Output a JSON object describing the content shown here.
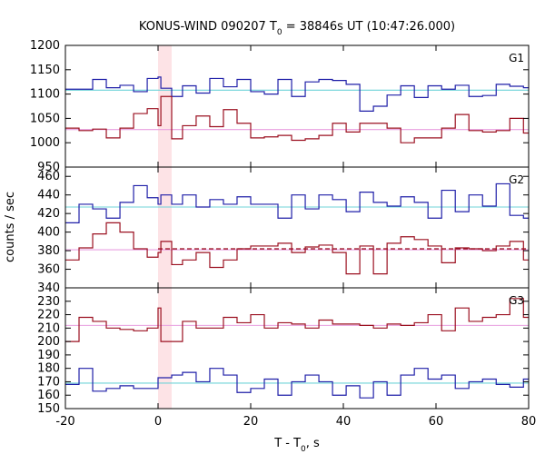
{
  "chart_data": {
    "type": "line",
    "title_parts": {
      "pre": "KONUS-WIND 090207 T",
      "sub": "0",
      "post": " = 38846s UT (10:47:26.000)"
    },
    "xlabel_parts": {
      "pre": "T - T",
      "sub": "0",
      "post": ", s"
    },
    "ylabel": "counts / sec",
    "xlim": [
      -20,
      80
    ],
    "x_ticks": [
      -20,
      0,
      20,
      40,
      60,
      80
    ],
    "highlight_band": [
      0,
      2.944
    ],
    "bin_edges": [
      -20.0,
      -17.056,
      -14.112,
      -11.168,
      -8.224,
      -5.28,
      -2.336,
      0.0,
      0.608,
      2.944,
      5.28,
      8.224,
      11.168,
      14.112,
      17.056,
      20.0,
      22.944,
      25.888,
      28.832,
      31.776,
      34.72,
      37.664,
      40.608,
      43.552,
      46.496,
      49.44,
      52.384,
      55.328,
      58.272,
      61.216,
      64.16,
      67.104,
      70.048,
      72.992,
      75.936,
      78.88,
      80.0
    ],
    "panels": [
      {
        "label": "G1",
        "ylim": [
          950,
          1200
        ],
        "y_ticks": [
          950,
          1000,
          1050,
          1100,
          1150,
          1200
        ],
        "series": [
          {
            "name": "blue",
            "color": "#1f1fa8",
            "values": [
              1110,
              1110,
              1130,
              1113,
              1118,
              1105,
              1132,
              1135,
              1112,
              1095,
              1117,
              1102,
              1132,
              1115,
              1130,
              1105,
              1100,
              1130,
              1095,
              1125,
              1130,
              1128,
              1120,
              1065,
              1075,
              1098,
              1117,
              1093,
              1117,
              1110,
              1118,
              1095,
              1097,
              1120,
              1116,
              1113
            ]
          },
          {
            "name": "dark-red",
            "color": "#9b1020",
            "values": [
              1030,
              1025,
              1028,
              1010,
              1030,
              1060,
              1070,
              1035,
              1095,
              1008,
              1035,
              1055,
              1033,
              1068,
              1040,
              1010,
              1012,
              1015,
              1005,
              1008,
              1015,
              1040,
              1022,
              1040,
              1040,
              1030,
              1000,
              1010,
              1010,
              1030,
              1058,
              1025,
              1022,
              1025,
              1050,
              1020
            ]
          }
        ],
        "background_lines": [
          {
            "name": "blue-bkg",
            "color": "#6fd3d8",
            "value": 1108,
            "dashed": false
          },
          {
            "name": "red-bkg",
            "color": "#e89fe0",
            "value": 1027,
            "dashed": false
          }
        ]
      },
      {
        "label": "G2",
        "ylim": [
          340,
          470
        ],
        "y_ticks": [
          340,
          360,
          380,
          400,
          420,
          440,
          460
        ],
        "series": [
          {
            "name": "blue",
            "color": "#1f1fa8",
            "values": [
              410,
              430,
              425,
              415,
              432,
              450,
              437,
              430,
              440,
              430,
              440,
              427,
              435,
              430,
              438,
              430,
              430,
              415,
              440,
              425,
              440,
              435,
              422,
              443,
              432,
              428,
              438,
              432,
              415,
              445,
              422,
              440,
              428,
              452,
              418,
              415
            ]
          },
          {
            "name": "dark-red",
            "color": "#9b1020",
            "values": [
              370,
              383,
              398,
              410,
              400,
              382,
              373,
              378,
              390,
              365,
              370,
              378,
              362,
              370,
              382,
              385,
              385,
              388,
              378,
              384,
              386,
              378,
              355,
              385,
              355,
              388,
              395,
              392,
              385,
              367,
              383,
              382,
              380,
              385,
              390,
              370
            ]
          }
        ],
        "background_lines": [
          {
            "name": "blue-bkg",
            "color": "#6fd3d8",
            "value": 427,
            "dashed": false
          },
          {
            "name": "red-bkg",
            "color": "#e89fe0",
            "value": 381,
            "dashed": false
          },
          {
            "name": "red-dashed",
            "color": "#9b1020",
            "value": 382,
            "dashed": true,
            "from_x": 0.0,
            "to_x": 80.0
          }
        ]
      },
      {
        "label": "G3",
        "ylim": [
          150,
          240
        ],
        "y_ticks": [
          150,
          160,
          170,
          180,
          190,
          200,
          210,
          220,
          230
        ],
        "series": [
          {
            "name": "dark-red",
            "color": "#9b1020",
            "values": [
              200,
              218,
              215,
              210,
              209,
              208,
              210,
              225,
              200,
              200,
              215,
              210,
              210,
              218,
              214,
              220,
              210,
              214,
              213,
              210,
              216,
              213,
              213,
              212,
              210,
              213,
              212,
              214,
              220,
              208,
              225,
              215,
              218,
              220,
              232,
              218
            ]
          },
          {
            "name": "blue",
            "color": "#1f1fa8",
            "values": [
              168,
              180,
              163,
              165,
              167,
              165,
              165,
              173,
              173,
              175,
              177,
              170,
              180,
              175,
              162,
              165,
              172,
              160,
              170,
              175,
              170,
              160,
              167,
              158,
              170,
              160,
              175,
              180,
              172,
              175,
              165,
              170,
              172,
              168,
              166,
              172
            ]
          }
        ],
        "background_lines": [
          {
            "name": "red-bkg",
            "color": "#e89fe0",
            "value": 212,
            "dashed": false
          },
          {
            "name": "blue-bkg",
            "color": "#6fd3d8",
            "value": 169,
            "dashed": false
          }
        ]
      }
    ]
  }
}
